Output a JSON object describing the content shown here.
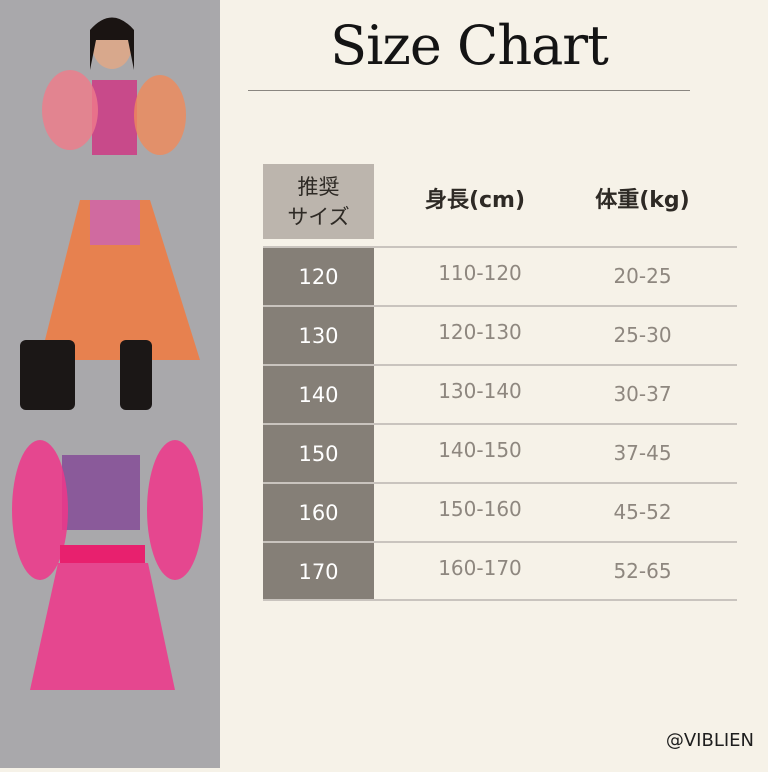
{
  "title": "Size Chart",
  "table": {
    "headers": {
      "size": "推奨\nサイズ",
      "height": "身長(cm)",
      "weight": "体重(kg)"
    },
    "rows": [
      {
        "size": "120",
        "height": "110-120",
        "weight": "20-25"
      },
      {
        "size": "130",
        "height": "120-130",
        "weight": "25-30"
      },
      {
        "size": "140",
        "height": "130-140",
        "weight": "30-37"
      },
      {
        "size": "150",
        "height": "140-150",
        "weight": "37-45"
      },
      {
        "size": "160",
        "height": "150-160",
        "weight": "45-52"
      },
      {
        "size": "170",
        "height": "160-170",
        "weight": "52-65"
      }
    ]
  },
  "brand": "@VIBLIEN",
  "colors": {
    "panel": "#a9a8ab",
    "background": "#f6f2e8",
    "size_cell": "#857f77",
    "header_cell": "#bcb5ad",
    "garment_pink": "#f0368a",
    "garment_orange": "#f47a3a"
  }
}
